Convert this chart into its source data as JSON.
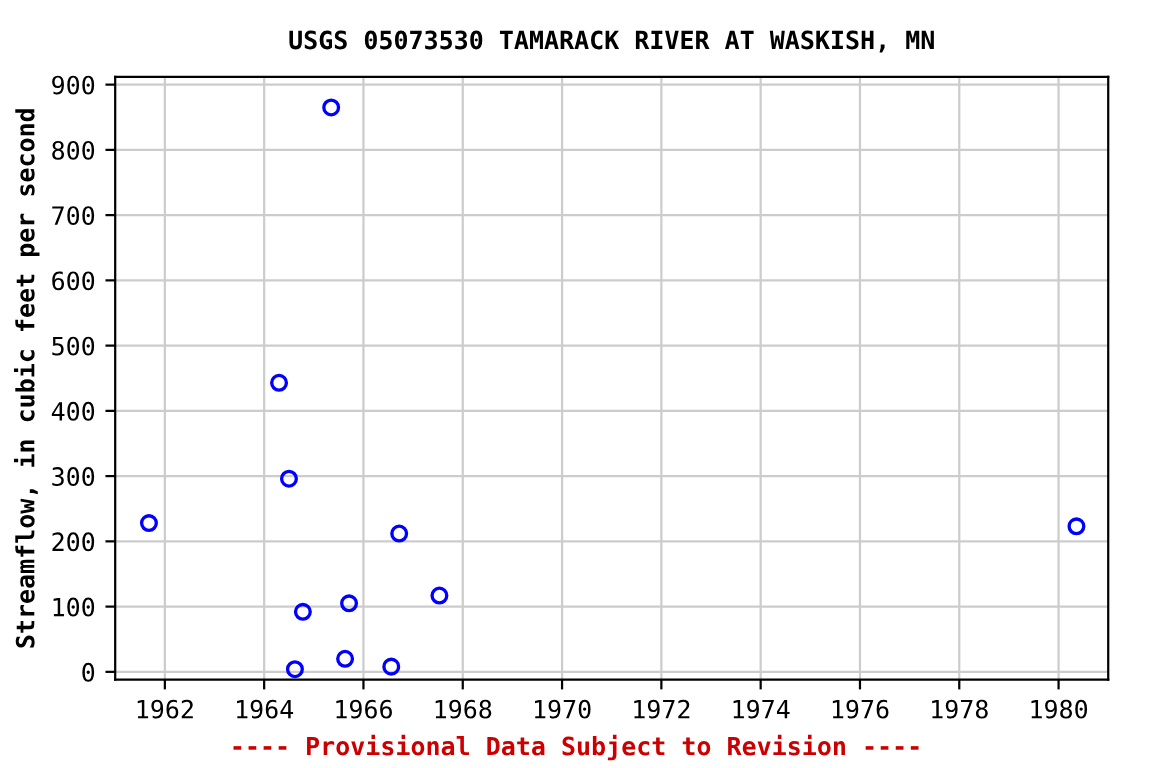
{
  "chart_data": {
    "type": "scatter",
    "title": "USGS 05073530 TAMARACK RIVER AT WASKISH, MN",
    "ylabel": "Streamflow, in cubic feet per second",
    "annotations": [
      "---- Provisional Data Subject to Revision ----"
    ],
    "x": [
      1961.68,
      1964.3,
      1964.5,
      1964.62,
      1964.78,
      1965.35,
      1965.63,
      1965.71,
      1966.56,
      1966.72,
      1967.53,
      1980.36
    ],
    "series": [
      {
        "color": "#0000ff",
        "values": [
          228,
          443,
          296,
          4,
          92,
          865,
          20,
          105,
          8,
          212,
          117,
          223
        ]
      }
    ],
    "xlim": [
      1961,
      1981
    ],
    "xticks": [
      1962,
      1964,
      1966,
      1968,
      1970,
      1972,
      1974,
      1976,
      1978,
      1980
    ],
    "ylim": [
      -12,
      912
    ],
    "yticks": [
      0,
      100,
      200,
      300,
      400,
      500,
      600,
      700,
      800,
      900
    ],
    "grid": true,
    "marker": "circle"
  }
}
